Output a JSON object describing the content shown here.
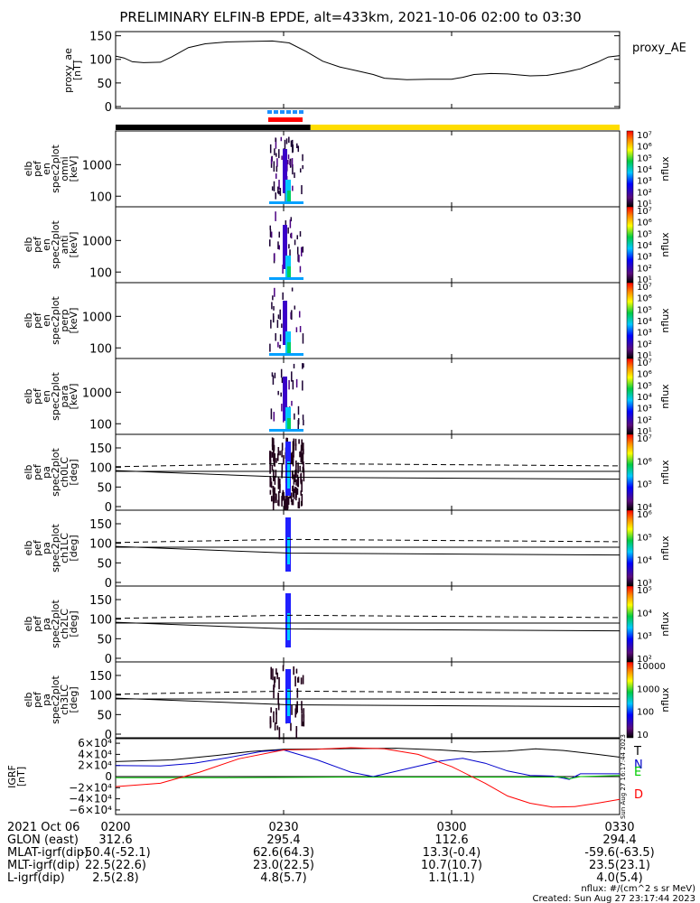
{
  "title": "PRELIMINARY ELFIN-B EPDE, alt=433km, 2021-10-06 02:00 to 03:30",
  "chart_data": {
    "type": "line",
    "time_ticks": [
      "0200",
      "0230",
      "0300",
      "0330"
    ],
    "time_range_minutes": [
      0,
      90
    ],
    "proxy_ae": {
      "ylabel_lines": [
        "proxy_ae",
        "[nT]"
      ],
      "legend": "proxy_AE",
      "yticks": [
        "150",
        "100",
        "50",
        "0"
      ],
      "ylim": [
        0,
        155
      ],
      "series": [
        {
          "t": 0,
          "v": 107
        },
        {
          "t": 1.5,
          "v": 103
        },
        {
          "t": 3,
          "v": 95
        },
        {
          "t": 5,
          "v": 93
        },
        {
          "t": 8,
          "v": 94
        },
        {
          "t": 10,
          "v": 105
        },
        {
          "t": 13,
          "v": 125
        },
        {
          "t": 16,
          "v": 133
        },
        {
          "t": 20,
          "v": 137
        },
        {
          "t": 24,
          "v": 138
        },
        {
          "t": 28,
          "v": 139
        },
        {
          "t": 31,
          "v": 135
        },
        {
          "t": 34,
          "v": 117
        },
        {
          "t": 37,
          "v": 96
        },
        {
          "t": 40,
          "v": 84
        },
        {
          "t": 43,
          "v": 76
        },
        {
          "t": 46,
          "v": 68
        },
        {
          "t": 48,
          "v": 60
        },
        {
          "t": 52,
          "v": 57
        },
        {
          "t": 56,
          "v": 58
        },
        {
          "t": 60,
          "v": 58
        },
        {
          "t": 62,
          "v": 62
        },
        {
          "t": 64,
          "v": 68
        },
        {
          "t": 67,
          "v": 70
        },
        {
          "t": 70,
          "v": 69
        },
        {
          "t": 74,
          "v": 65
        },
        {
          "t": 77,
          "v": 66
        },
        {
          "t": 80,
          "v": 72
        },
        {
          "t": 83,
          "v": 80
        },
        {
          "t": 86,
          "v": 94
        },
        {
          "t": 88,
          "v": 105
        },
        {
          "t": 90,
          "v": 108
        }
      ]
    },
    "spectrograms": [
      {
        "label_lines": [
          "elb",
          "pef",
          "en",
          "spec2plot",
          "omni",
          "[keV]"
        ],
        "yticks": [
          "1000",
          "100"
        ],
        "cbar": [
          "10⁷",
          "10⁶",
          "10⁵",
          "10⁴",
          "10³",
          "10²",
          "10¹"
        ],
        "cbar_label": "nflux"
      },
      {
        "label_lines": [
          "elb",
          "pef",
          "en",
          "spec2plot",
          "anti",
          "[keV]"
        ],
        "yticks": [
          "1000",
          "100"
        ],
        "cbar": [
          "10⁷",
          "10⁶",
          "10⁵",
          "10⁴",
          "10³",
          "10²",
          "10¹"
        ],
        "cbar_label": "nflux"
      },
      {
        "label_lines": [
          "elb",
          "pef",
          "en",
          "spec2plot",
          "perp",
          "[keV]"
        ],
        "yticks": [
          "1000",
          "100"
        ],
        "cbar": [
          "10⁷",
          "10⁶",
          "10⁵",
          "10⁴",
          "10³",
          "10²",
          "10¹"
        ],
        "cbar_label": "nflux"
      },
      {
        "label_lines": [
          "elb",
          "pef",
          "en",
          "spec2plot",
          "para",
          "[keV]"
        ],
        "yticks": [
          "1000",
          "100"
        ],
        "cbar": [
          "10⁷",
          "10⁶",
          "10⁵",
          "10⁴",
          "10³",
          "10²",
          "10¹"
        ],
        "cbar_label": "nflux"
      }
    ],
    "pitch_angle_panels": [
      {
        "label_lines": [
          "elb",
          "pef",
          "pa",
          "spec2plot",
          "ch0LC",
          "[deg]"
        ],
        "yticks": [
          "150",
          "100",
          "50",
          "0"
        ],
        "cbar": [
          "10⁷",
          "10⁶",
          "10⁵",
          "10⁴"
        ],
        "cbar_label": "nflux"
      },
      {
        "label_lines": [
          "elb",
          "pef",
          "pa",
          "spec2plot",
          "ch1LC",
          "[deg]"
        ],
        "yticks": [
          "150",
          "100",
          "50",
          "0"
        ],
        "cbar": [
          "10⁶",
          "10⁵",
          "10⁴",
          "10³"
        ],
        "cbar_label": "nflux"
      },
      {
        "label_lines": [
          "elb",
          "pef",
          "pa",
          "spec2plot",
          "ch2LC",
          "[deg]"
        ],
        "yticks": [
          "150",
          "100",
          "50",
          "0"
        ],
        "cbar": [
          "10⁵",
          "10⁴",
          "10³",
          "10²"
        ],
        "cbar_label": "nflux"
      },
      {
        "label_lines": [
          "elb",
          "pef",
          "pa",
          "spec2plot",
          "ch3LC",
          "[deg]"
        ],
        "yticks": [
          "150",
          "100",
          "50",
          "0"
        ],
        "cbar": [
          "10000",
          "1000",
          "100",
          "10"
        ],
        "cbar_label": "nflux"
      }
    ],
    "igrf": {
      "ylabel_lines": [
        "IGRF",
        "[nT]"
      ],
      "yticks": [
        "6×10⁴",
        "4×10⁴",
        "2×10⁴",
        "0",
        "−2×10⁴",
        "−4×10⁴",
        "−6×10⁴"
      ],
      "ylim": [
        -65000,
        65000
      ],
      "series": [
        {
          "name": "T",
          "color": "#000000",
          "points": [
            [
              0,
              27000
            ],
            [
              10,
              30000
            ],
            [
              18,
              38000
            ],
            [
              24,
              45000
            ],
            [
              30,
              49000
            ],
            [
              40,
              50000
            ],
            [
              50,
              51000
            ],
            [
              58,
              48000
            ],
            [
              64,
              44000
            ],
            [
              70,
              46000
            ],
            [
              75,
              50000
            ],
            [
              80,
              47000
            ],
            [
              86,
              40000
            ],
            [
              90,
              35000
            ]
          ]
        },
        {
          "name": "N",
          "color": "#0000cc",
          "points": [
            [
              0,
              20000
            ],
            [
              8,
              19000
            ],
            [
              14,
              24000
            ],
            [
              20,
              34000
            ],
            [
              26,
              45000
            ],
            [
              30,
              48000
            ],
            [
              36,
              30000
            ],
            [
              42,
              8000
            ],
            [
              46,
              0
            ],
            [
              52,
              14000
            ],
            [
              58,
              28000
            ],
            [
              62,
              33000
            ],
            [
              66,
              24000
            ],
            [
              70,
              10000
            ],
            [
              74,
              2000
            ],
            [
              78,
              1000
            ],
            [
              81,
              -5000
            ],
            [
              83,
              5000
            ],
            [
              90,
              5000
            ]
          ]
        },
        {
          "name": "E",
          "color": "#00cc00",
          "points": [
            [
              0,
              -2000
            ],
            [
              20,
              -2000
            ],
            [
              40,
              -1000
            ],
            [
              60,
              -1000
            ],
            [
              80,
              -1000
            ],
            [
              81,
              -4000
            ],
            [
              83,
              0
            ],
            [
              90,
              2000
            ]
          ]
        },
        {
          "name": "D",
          "color": "#ff0000",
          "points": [
            [
              0,
              -18000
            ],
            [
              8,
              -12000
            ],
            [
              15,
              8000
            ],
            [
              22,
              32000
            ],
            [
              30,
              48000
            ],
            [
              36,
              49000
            ],
            [
              42,
              52000
            ],
            [
              48,
              50000
            ],
            [
              54,
              40000
            ],
            [
              60,
              18000
            ],
            [
              66,
              -12000
            ],
            [
              70,
              -35000
            ],
            [
              74,
              -48000
            ],
            [
              78,
              -55000
            ],
            [
              82,
              -54000
            ],
            [
              86,
              -48000
            ],
            [
              90,
              -41000
            ]
          ]
        }
      ]
    },
    "markers": {
      "black_bar_end_t": 34.8,
      "yellow_start_t": 34.8
    }
  },
  "footer": {
    "date": "2021 Oct 06",
    "time_row": [
      "0200",
      "0230",
      "0300",
      "0330"
    ],
    "rows": [
      {
        "label": "GLON (east)",
        "values": [
          "312.6",
          "295.4",
          "112.6",
          "294.4"
        ]
      },
      {
        "label": "MLAT-igrf(dip)",
        "values": [
          "-50.4(-52.1)",
          "62.6(64.3)",
          "13.3(-0.4)",
          "-59.6(-63.5)"
        ]
      },
      {
        "label": "MLT-igrf(dip)",
        "values": [
          "22.5(22.6)",
          "23.0(22.5)",
          "10.7(10.7)",
          "23.5(23.1)"
        ]
      },
      {
        "label": "L-igrf(dip)",
        "values": [
          "2.5(2.8)",
          "4.8(5.7)",
          "1.1(1.1)",
          "4.0(5.4)"
        ]
      }
    ],
    "units_note": "nflux: #/(cm^2 s sr MeV)",
    "created": "Created: Sun Aug 27 23:17:44 2023",
    "side_stamp": "Sun Aug 27 16:17:44 2023"
  }
}
